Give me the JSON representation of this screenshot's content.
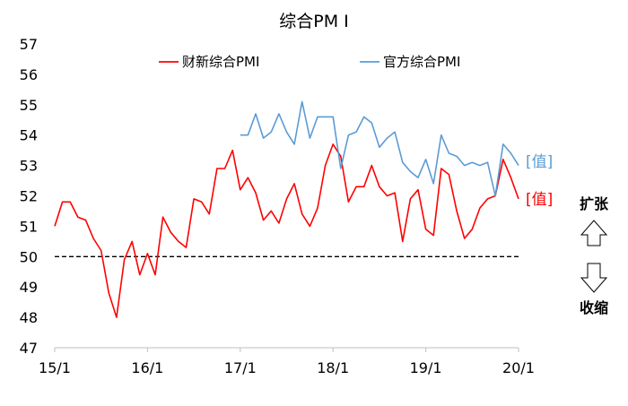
{
  "chart_data": {
    "type": "line",
    "title": "综合PM I",
    "xlabel": "",
    "ylabel": "",
    "ylim": [
      47,
      57
    ],
    "yticks": [
      47,
      48,
      49,
      50,
      51,
      52,
      53,
      54,
      55,
      56,
      57
    ],
    "xticks": [
      {
        "label": "15/1",
        "x": 0
      },
      {
        "label": "16/1",
        "x": 12
      },
      {
        "label": "17/1",
        "x": 24
      },
      {
        "label": "18/1",
        "x": 36
      },
      {
        "label": "19/1",
        "x": 48
      },
      {
        "label": "20/1",
        "x": 60
      }
    ],
    "grid": false,
    "legend_position": "top",
    "reference_line": {
      "y": 50,
      "style": "dashed"
    },
    "series": [
      {
        "name": "财新综合PMI",
        "color": "#ff0000",
        "start_index": 0,
        "values": [
          51.0,
          51.8,
          51.8,
          51.3,
          51.2,
          50.6,
          50.2,
          48.8,
          48.0,
          49.9,
          50.5,
          49.4,
          50.1,
          49.4,
          51.3,
          50.8,
          50.5,
          50.3,
          51.9,
          51.8,
          51.4,
          52.9,
          52.9,
          53.5,
          52.2,
          52.6,
          52.1,
          51.2,
          51.5,
          51.1,
          51.9,
          52.4,
          51.4,
          51.0,
          51.6,
          53.0,
          53.7,
          53.3,
          51.8,
          52.3,
          52.3,
          53.0,
          52.3,
          52.0,
          52.1,
          50.5,
          51.9,
          52.2,
          50.9,
          50.7,
          52.9,
          52.7,
          51.5,
          50.6,
          50.9,
          51.6,
          51.9,
          52.0,
          53.2,
          52.6,
          51.9
        ],
        "end_label": "[值]"
      },
      {
        "name": "官方综合PMI",
        "color": "#5b9bd5",
        "start_index": 24,
        "values": [
          54.0,
          54.0,
          54.7,
          53.9,
          54.1,
          54.7,
          54.1,
          53.7,
          55.1,
          53.9,
          54.6,
          54.6,
          54.6,
          52.9,
          54.0,
          54.1,
          54.6,
          54.4,
          53.6,
          53.9,
          54.1,
          53.1,
          52.8,
          52.6,
          53.2,
          52.4,
          54.0,
          53.4,
          53.3,
          53.0,
          53.1,
          53.0,
          53.1,
          52.0,
          53.7,
          53.4,
          53.0
        ],
        "end_label": "[值]"
      }
    ],
    "annotations": [
      {
        "text": "扩张",
        "arrow": "up"
      },
      {
        "text": "收缩",
        "arrow": "down"
      }
    ]
  }
}
